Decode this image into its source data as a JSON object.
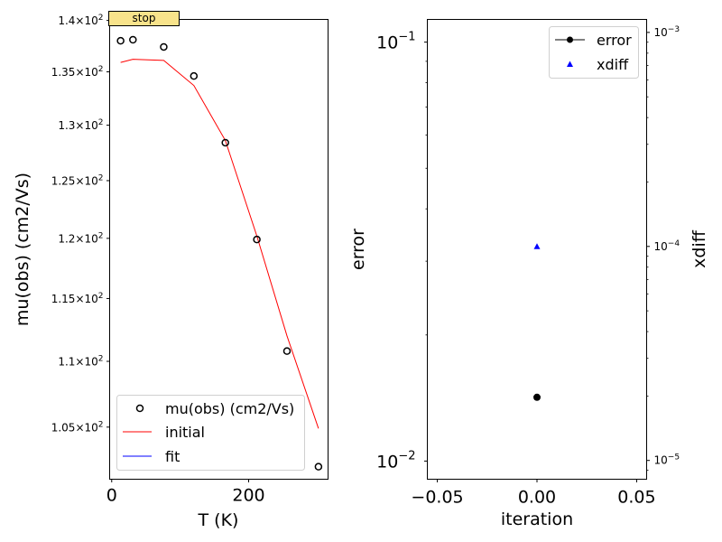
{
  "stop_button": {
    "label": "stop"
  },
  "chart_data": [
    {
      "type": "scatter+line",
      "title": "",
      "xlabel": "T (K)",
      "ylabel": "mu(obs) (cm2/Vs)",
      "xscale": "linear",
      "yscale": "log",
      "xlim": [
        -3,
        316
      ],
      "ylim": [
        101.2,
        140.1
      ],
      "xticks": [
        0,
        200
      ],
      "xtick_labels": [
        "0",
        "200"
      ],
      "yticks": [
        140,
        135,
        130,
        125,
        120,
        115,
        110,
        105
      ],
      "ytick_labels": [
        {
          "mant": "1.4",
          "exp": "2"
        },
        {
          "mant": "1.35",
          "exp": "2"
        },
        {
          "mant": "1.3",
          "exp": "2"
        },
        {
          "mant": "1.25",
          "exp": "2"
        },
        {
          "mant": "1.2",
          "exp": "2"
        },
        {
          "mant": "1.15",
          "exp": "2"
        },
        {
          "mant": "1.1",
          "exp": "2"
        },
        {
          "mant": "1.05",
          "exp": "2"
        }
      ],
      "tick_times": "×10",
      "legend_position": "lower-left",
      "series": [
        {
          "name": "mu(obs) (cm2/Vs)",
          "kind": "scatter",
          "marker": "open-circle",
          "color": "#000000",
          "x": [
            13,
            31,
            76,
            120,
            166,
            212,
            256,
            302
          ],
          "y": [
            138.0,
            138.1,
            137.4,
            134.6,
            128.4,
            119.9,
            110.8,
            102.1
          ]
        },
        {
          "name": "initial",
          "kind": "line",
          "color": "#ff0000",
          "x": [
            13,
            31,
            76,
            120,
            166,
            212,
            256,
            302
          ],
          "y": [
            135.9,
            136.2,
            136.1,
            133.7,
            128.6,
            120.2,
            112.0,
            104.9
          ]
        },
        {
          "name": "fit",
          "kind": "line",
          "color": "#0000ff",
          "x": [],
          "y": []
        }
      ]
    },
    {
      "type": "scatter",
      "title": "",
      "xlabel": "iteration",
      "ylabel": "error",
      "ylabel_right": "xdiff",
      "xscale": "linear",
      "yscale": "log",
      "yscale_right": "log",
      "xlim": [
        -0.055,
        0.055
      ],
      "ylim": [
        0.00905,
        0.1133
      ],
      "ylim_right": [
        8.17e-06,
        0.00115
      ],
      "xticks": [
        -0.05,
        0.0,
        0.05
      ],
      "xtick_labels": [
        "−0.05",
        "0.00",
        "0.05"
      ],
      "yticks": [
        0.1,
        0.01
      ],
      "ytick_labels": [
        {
          "base": "10",
          "exp": "−1"
        },
        {
          "base": "10",
          "exp": "−2"
        }
      ],
      "yticks_right": [
        0.001,
        0.0001,
        1e-05
      ],
      "ytick_labels_right": [
        {
          "base": "10",
          "exp": "−3"
        },
        {
          "base": "10",
          "exp": "−4"
        },
        {
          "base": "10",
          "exp": "−5"
        }
      ],
      "legend_position": "top-right",
      "series": [
        {
          "name": "error",
          "kind": "line+marker",
          "marker": "filled-circle",
          "color": "#000000",
          "axis": "left",
          "x": [
            0
          ],
          "y": [
            0.0142
          ]
        },
        {
          "name": "xdiff",
          "kind": "scatter",
          "marker": "filled-triangle",
          "color": "#0000ff",
          "axis": "right",
          "x": [
            0
          ],
          "y": [
            0.0001
          ]
        }
      ]
    }
  ]
}
